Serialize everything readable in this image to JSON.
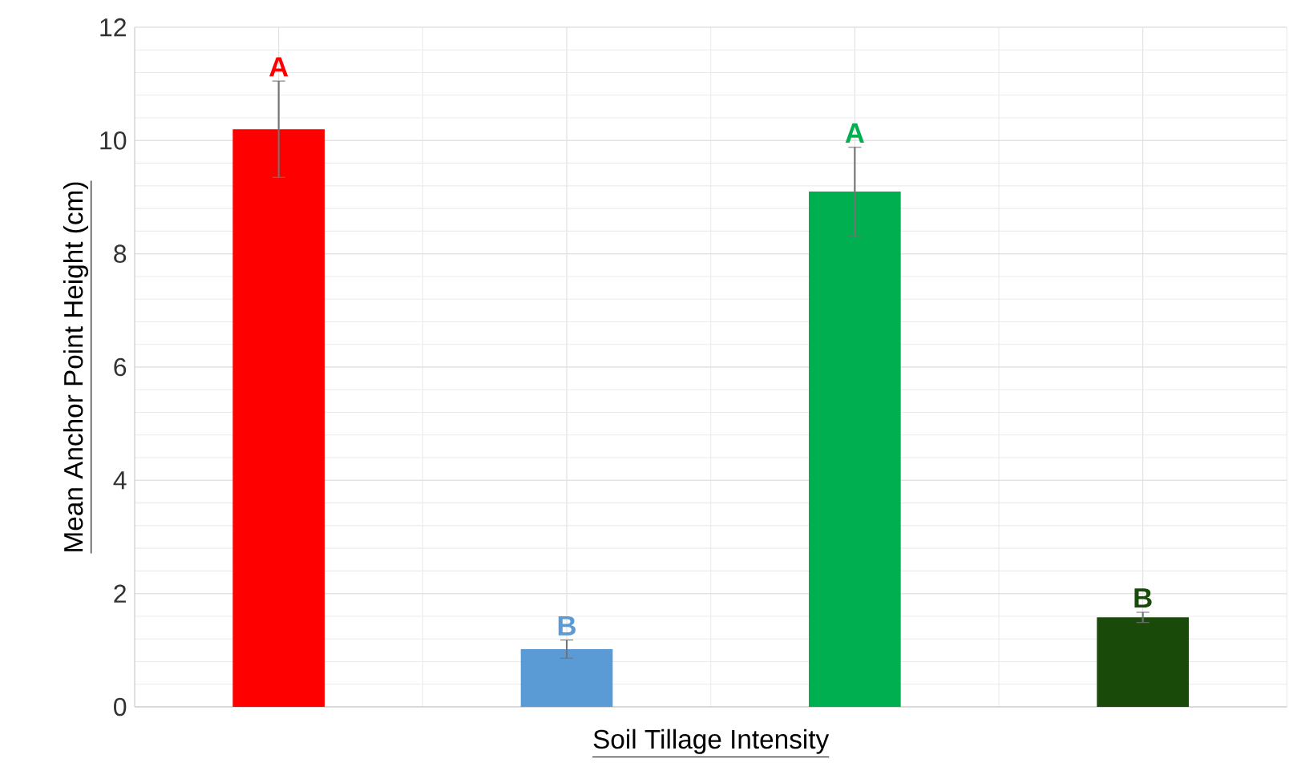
{
  "chart_data": {
    "type": "bar",
    "xlabel": "Soil Tillage Intensity",
    "ylabel": "Mean Anchor Point Height (cm)",
    "categories": [
      null,
      null,
      null,
      null
    ],
    "values": [
      10.2,
      1.02,
      9.1,
      1.58
    ],
    "errors": [
      0.85,
      0.16,
      0.78,
      0.09
    ],
    "colors": [
      "#ff0000",
      "#5b9bd5",
      "#00b050",
      "#1a4a0a"
    ],
    "annotations": [
      "A",
      "B",
      "A",
      "B"
    ],
    "ylim": [
      0,
      12
    ],
    "yticks": [
      0,
      2,
      4,
      6,
      8,
      10,
      12
    ],
    "grid": true
  }
}
